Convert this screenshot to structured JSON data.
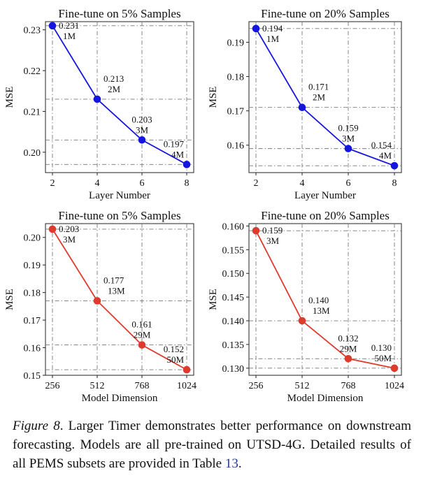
{
  "chart_data": [
    {
      "type": "line",
      "title": "Fine-tune on 5% Samples",
      "xlabel": "Layer Number",
      "ylabel": "MSE",
      "x": [
        2,
        4,
        6,
        8
      ],
      "xticks": [
        "2",
        "4",
        "6",
        "8"
      ],
      "ylim": [
        0.195,
        0.232
      ],
      "yticks": [
        0.2,
        0.21,
        0.22,
        0.23
      ],
      "ytick_labels": [
        "0.20",
        "0.21",
        "0.22",
        "0.23"
      ],
      "values": [
        0.231,
        0.213,
        0.203,
        0.197
      ],
      "value_labels": [
        "0.231",
        "0.213",
        "0.203",
        "0.197"
      ],
      "param_labels": [
        "1M",
        "2M",
        "3M",
        "4M"
      ],
      "color": "#1515e0",
      "grid": true
    },
    {
      "type": "line",
      "title": "Fine-tune on 20% Samples",
      "xlabel": "Layer Number",
      "ylabel": "MSE",
      "x": [
        2,
        4,
        6,
        8
      ],
      "xticks": [
        "2",
        "4",
        "6",
        "8"
      ],
      "ylim": [
        0.152,
        0.196
      ],
      "yticks": [
        0.16,
        0.17,
        0.18,
        0.19
      ],
      "ytick_labels": [
        "0.16",
        "0.17",
        "0.18",
        "0.19"
      ],
      "values": [
        0.194,
        0.171,
        0.159,
        0.154
      ],
      "value_labels": [
        "0.194",
        "0.171",
        "0.159",
        "0.154"
      ],
      "param_labels": [
        "1M",
        "2M",
        "3M",
        "4M"
      ],
      "color": "#1515e0",
      "grid": true
    },
    {
      "type": "line",
      "title": "Fine-tune on 5% Samples",
      "xlabel": "Model Dimension",
      "ylabel": "MSE",
      "x": [
        256,
        512,
        768,
        1024
      ],
      "xticks": [
        "256",
        "512",
        "768",
        "1024"
      ],
      "ylim": [
        0.15,
        0.205
      ],
      "yticks": [
        0.15,
        0.16,
        0.17,
        0.18,
        0.19,
        0.2
      ],
      "ytick_labels": [
        "0.15",
        "0.16",
        "0.17",
        "0.18",
        "0.19",
        "0.20"
      ],
      "values": [
        0.203,
        0.177,
        0.161,
        0.152
      ],
      "value_labels": [
        "0.203",
        "0.177",
        "0.161",
        "0.152"
      ],
      "param_labels": [
        "3M",
        "13M",
        "29M",
        "50M"
      ],
      "color": "#dd3b2e",
      "grid": true
    },
    {
      "type": "line",
      "title": "Fine-tune on 20% Samples",
      "xlabel": "Model Dimension",
      "ylabel": "MSE",
      "x": [
        256,
        512,
        768,
        1024
      ],
      "xticks": [
        "256",
        "512",
        "768",
        "1024"
      ],
      "ylim": [
        0.1285,
        0.1605
      ],
      "yticks": [
        0.13,
        0.135,
        0.14,
        0.145,
        0.15,
        0.155,
        0.16
      ],
      "ytick_labels": [
        "0.130",
        "0.135",
        "0.140",
        "0.145",
        "0.150",
        "0.155",
        "0.160"
      ],
      "values": [
        0.159,
        0.14,
        0.132,
        0.13
      ],
      "value_labels": [
        "0.159",
        "0.140",
        "0.132",
        "0.130"
      ],
      "param_labels": [
        "3M",
        "13M",
        "29M",
        "50M"
      ],
      "color": "#dd3b2e",
      "grid": true
    }
  ],
  "caption": {
    "lead": "Figure 8",
    "text": ". Larger Timer demonstrates better performance on downstream forecasting. Models are all pre-trained on UTSD-4G. Detailed results of all PEMS subsets are provided in Table ",
    "ref": "13",
    "end": "."
  }
}
